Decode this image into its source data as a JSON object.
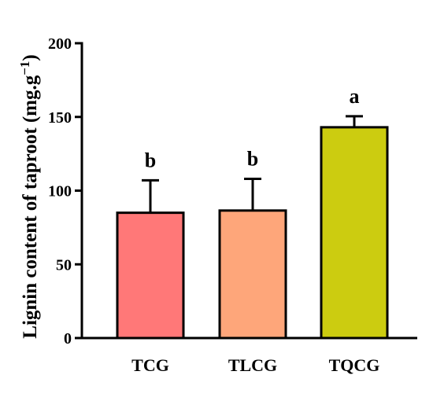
{
  "chart_data": {
    "type": "bar",
    "ylabel_main": "Lignin content of taproot (mg.g",
    "ylabel_sup": "−1",
    "ylabel_close": ")",
    "xlabel": "",
    "ylim": [
      0,
      200
    ],
    "yticks": [
      "0",
      "50",
      "100",
      "150",
      "200"
    ],
    "categories": [
      "TCG",
      "TLCG",
      "TQCG"
    ],
    "values": [
      85,
      86.5,
      143
    ],
    "errors": [
      22,
      21.5,
      7.5
    ],
    "significance": [
      "b",
      "b",
      "a"
    ],
    "colors": [
      "#ff7878",
      "#fea67a",
      "#cccc10"
    ],
    "grid": false
  }
}
